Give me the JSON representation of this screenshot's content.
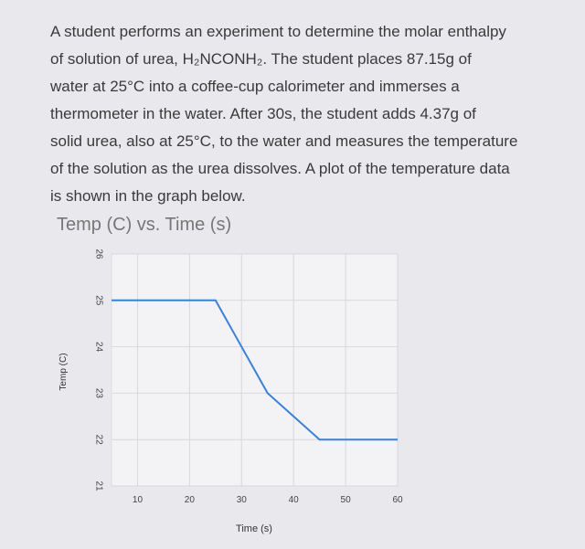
{
  "paragraph": [
    "A student performs an experiment to determine the molar enthalpy",
    "of solution of urea, H₂NCONH₂.  The student places 87.15g of",
    "water at 25°C into a coffee-cup calorimeter and immerses a",
    "thermometer in the water.  After 30s, the student adds 4.37g of",
    "solid urea, also at 25°C, to the water and measures the temperature",
    "of the solution as the urea dissolves.  A plot of the temperature data",
    "is shown in the graph below."
  ],
  "chart_data": {
    "type": "line",
    "title": "Temp (C) vs. Time (s)",
    "x_label": "Time (s)",
    "y_label": "Temp (C)",
    "x": [
      5,
      25,
      35,
      45,
      60
    ],
    "values": [
      25,
      25,
      23,
      22,
      22
    ],
    "color": "#3b82d6",
    "xlim": [
      5,
      60
    ],
    "xticks": [
      10,
      20,
      30,
      40,
      50,
      60
    ],
    "ylim": [
      21,
      26
    ],
    "yticks": [
      21,
      22,
      23,
      24,
      25,
      26
    ],
    "grid": true
  }
}
